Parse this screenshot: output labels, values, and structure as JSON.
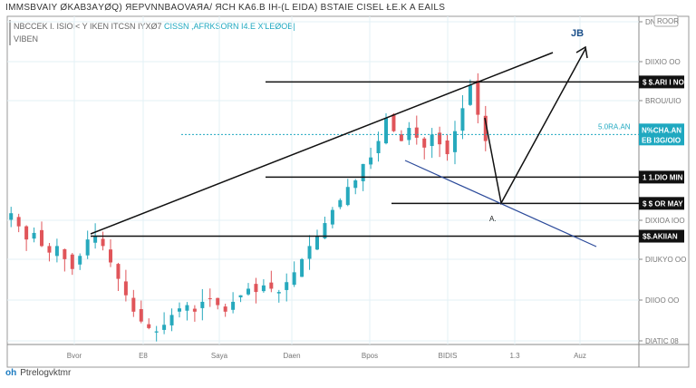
{
  "header": {
    "title": "IMMSBVAIY ØKAB3ΑYØQ) ЯEPVNNBAOVAЯA/ ЯCH KA6.B IH-(L EIDA) BSTAIE CISEL ŁE.K A EAILS",
    "legend_line1": "NBCCEK I. ISIOI< Y IKEN ITCSN IYXØ7 ",
    "legend_line1_accent": "CISSN ,AFRKSORN I4.E X'LEØOB|",
    "legend_line2": "VIBEN"
  },
  "brand": {
    "logo": "oh",
    "name": "Ptrelogvktmr"
  },
  "chart_data": {
    "type": "candlestick",
    "title": "",
    "xlabel": "",
    "ylabel": "",
    "x_ticks": [
      "Bvor",
      "E8",
      "Saya",
      "Daen",
      "Bpos",
      "BIDIS",
      "1.3",
      "Auz"
    ],
    "y_ticks": [
      "DN'",
      "DIIXIO OO",
      "BROU/UIO",
      "DIXIOA IOO",
      "DIUKYO OO",
      "DIIOO OO",
      "DIATIC 08"
    ],
    "y_top_button": "ROOR",
    "ylim": [
      0,
      100
    ],
    "closes": [
      40,
      36,
      32,
      34,
      30,
      28,
      30,
      26,
      23,
      27,
      32,
      33,
      30,
      25,
      20,
      15,
      10,
      7,
      5,
      4,
      6,
      9,
      11,
      12,
      10,
      13,
      14,
      12,
      10,
      13,
      15,
      17,
      16,
      18,
      17,
      16,
      19,
      22,
      26,
      30,
      33,
      37,
      41,
      44,
      48,
      50,
      55,
      57,
      62,
      69,
      65,
      62,
      66,
      63,
      60,
      64,
      61,
      58,
      65,
      72,
      79,
      70,
      62
    ],
    "price_levels": [
      {
        "label": "$ $.ARI I NO",
        "value": 80,
        "color": "#111111"
      },
      {
        "label": "1 1.DIO MIN",
        "value": 51,
        "color": "#111111"
      },
      {
        "label": "$ $ OR MAY",
        "value": 43,
        "color": "#111111"
      },
      {
        "label": "$$.AKIIAN",
        "value": 33,
        "color": "#111111"
      }
    ],
    "current_price": {
      "label1": "N%CHA.AN",
      "label2": "EB I3G/OIO",
      "side_label": "5.0RA.AN",
      "value": 64,
      "color": "#1fa8c0"
    },
    "annotation": "A.",
    "colors": {
      "up": "#27a9bd",
      "down": "#e0555a",
      "trend": "#111111",
      "support": "#2b4a9a"
    }
  }
}
